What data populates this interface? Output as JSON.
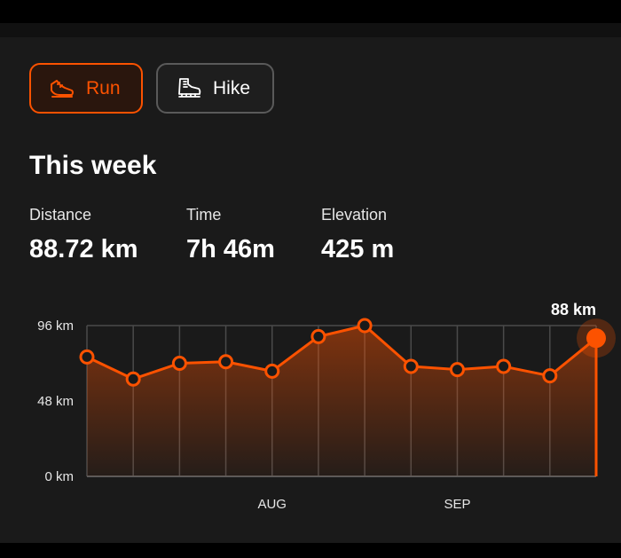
{
  "activity_tabs": [
    {
      "label": "Run",
      "icon": "running-shoe-icon",
      "selected": true
    },
    {
      "label": "Hike",
      "icon": "hiking-boot-icon",
      "selected": false
    }
  ],
  "summary": {
    "title": "This week",
    "stats": [
      {
        "label": "Distance",
        "value": "88.72 km"
      },
      {
        "label": "Time",
        "value": "7h 46m"
      },
      {
        "label": "Elevation",
        "value": "425 m"
      }
    ]
  },
  "colors": {
    "accent": "#fc5200",
    "background": "#1a1a1a",
    "grid": "#4a4a4a"
  },
  "chart_data": {
    "type": "area",
    "y_ticks": [
      "96 km",
      "48 km",
      "0 km"
    ],
    "ylim": [
      0,
      96
    ],
    "x_labels": [
      {
        "index": 4,
        "label": "AUG"
      },
      {
        "index": 8,
        "label": "SEP"
      }
    ],
    "values": [
      76,
      62,
      72,
      73,
      67,
      89,
      96,
      70,
      68,
      70,
      64,
      88
    ],
    "highlight_label": "88 km",
    "grid": true
  }
}
